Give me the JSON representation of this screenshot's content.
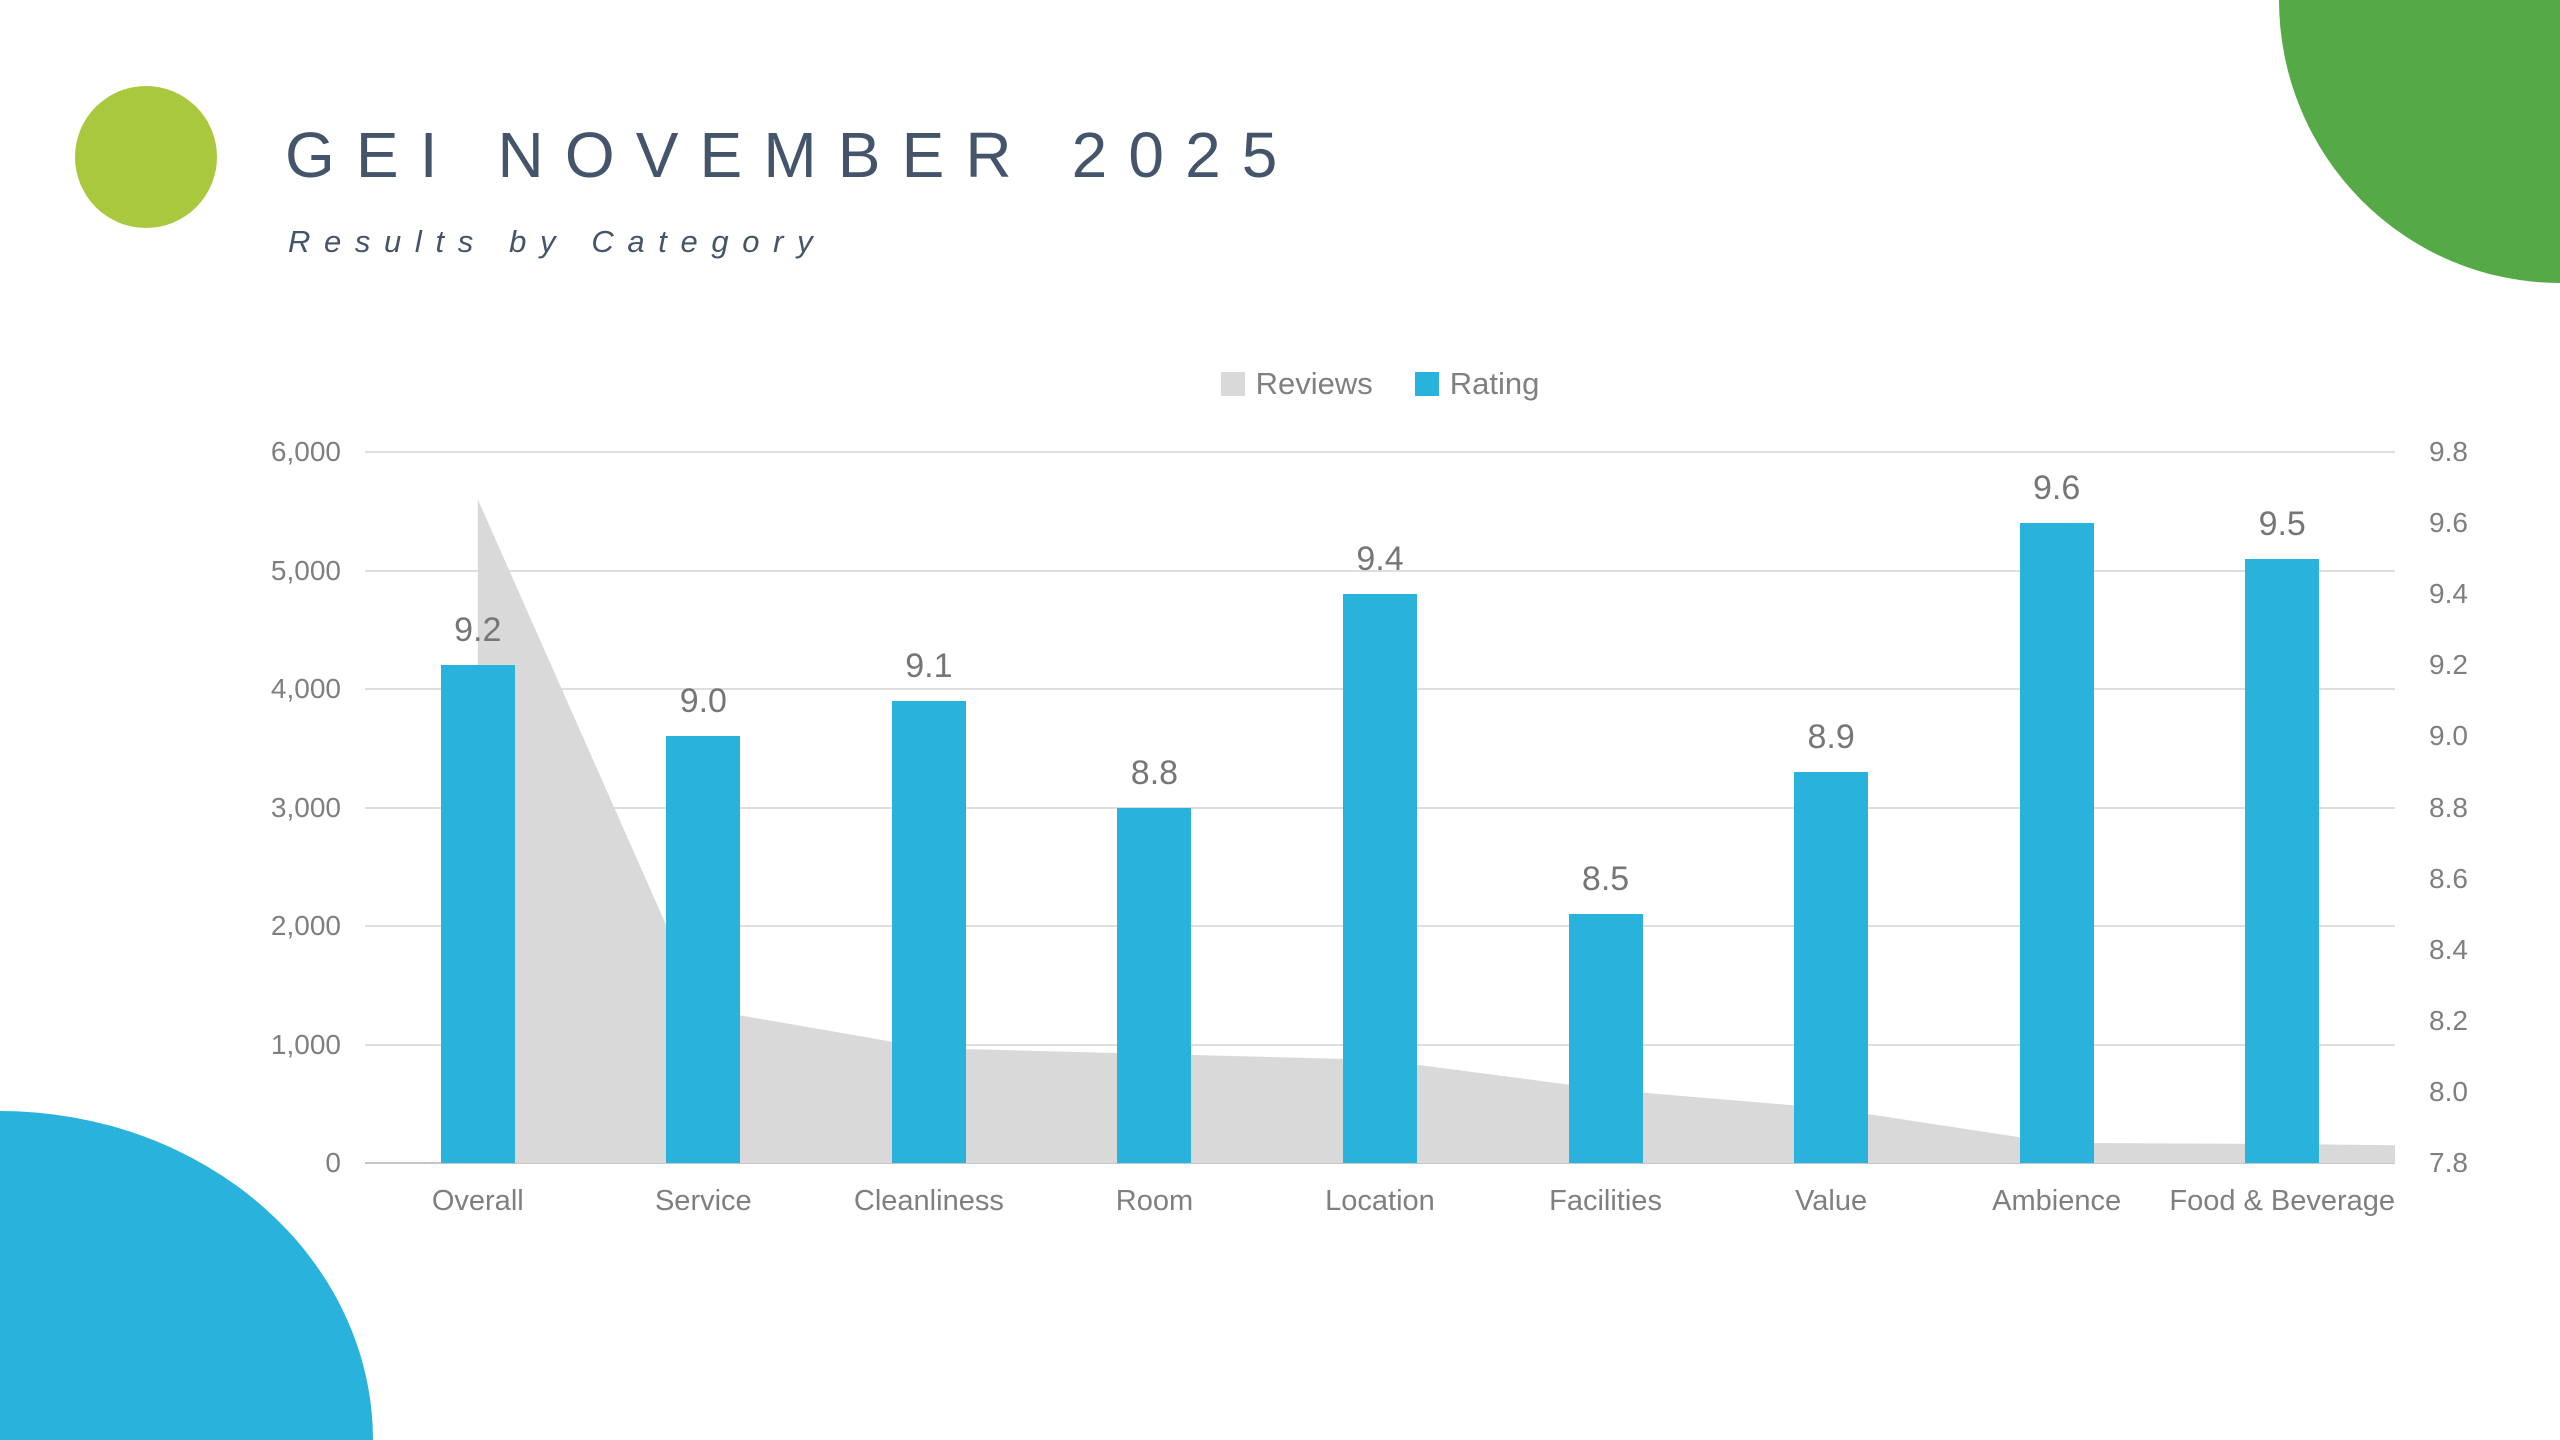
{
  "header": {
    "title": "GEI NOVEMBER 2025",
    "subtitle": "Results by Category"
  },
  "legend": {
    "items": [
      {
        "label": "Reviews",
        "color": "#D9D9D9"
      },
      {
        "label": "Rating",
        "color": "#29B2DC"
      }
    ]
  },
  "colors": {
    "background": "#FFFFFF",
    "navy": "#44546A",
    "blue": "#29B2DC",
    "area_gray": "#D9D9D9",
    "lime": "#A9C83E",
    "green": "#55A946",
    "axis_text": "#7F7F7F",
    "legend_text": "#808080",
    "data_label": "#767676",
    "gridline": "#DEDEDE",
    "axis_line": "#C6C6C6"
  },
  "decor_icons": [
    "circle-shape",
    "corner-blob-top-right",
    "corner-blob-bottom-left"
  ],
  "chart_data": {
    "type": "combo",
    "title": "GEI NOVEMBER 2025 — Results by Category",
    "categories": [
      "Overall",
      "Service",
      "Cleanliness",
      "Room",
      "Location",
      "Facilities",
      "Value",
      "Ambience",
      "Food & Beverage"
    ],
    "series": [
      {
        "name": "Reviews",
        "type": "area",
        "axis": "left",
        "color": "#D9D9D9",
        "values": [
          5600,
          1300,
          970,
          920,
          870,
          620,
          460,
          170,
          160
        ],
        "area_right_edge_value": 150
      },
      {
        "name": "Rating",
        "type": "bar",
        "axis": "right",
        "color": "#29B2DC",
        "values": [
          9.2,
          9.0,
          9.1,
          8.8,
          9.4,
          8.5,
          8.9,
          9.6,
          9.5
        ],
        "labels": [
          "9.2",
          "9.0",
          "9.1",
          "8.8",
          "9.4",
          "8.5",
          "8.9",
          "9.6",
          "9.5"
        ]
      }
    ],
    "left_axis": {
      "min": 0,
      "max": 6000,
      "step": 1000,
      "ticks": [
        "0",
        "1,000",
        "2,000",
        "3,000",
        "4,000",
        "5,000",
        "6,000"
      ]
    },
    "right_axis": {
      "min": 7.8,
      "max": 9.8,
      "step": 0.2,
      "ticks": [
        "7.8",
        "8.0",
        "8.2",
        "8.4",
        "8.6",
        "8.8",
        "9.0",
        "9.2",
        "9.4",
        "9.6",
        "9.8"
      ]
    },
    "grid": "horizontal-on-left-axis-steps",
    "legend_position": "top-center"
  }
}
